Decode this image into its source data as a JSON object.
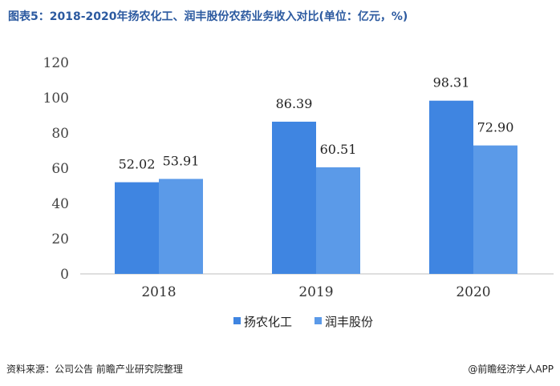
{
  "title": "图表5：2018-2020年扬农化工、润丰股份农药业务收入对比(单位：亿元，%)",
  "footer": {
    "source": "资料来源：公司公告 前瞻产业研究院整理",
    "brand": "@前瞻经济学人APP"
  },
  "colors": {
    "title": "#2c5aa0",
    "series1": "#3f85e1",
    "series2": "#5b9ae8"
  },
  "chart_data": {
    "type": "bar",
    "categories": [
      "2018",
      "2019",
      "2020"
    ],
    "series": [
      {
        "name": "扬农化工",
        "values": [
          52.02,
          86.39,
          98.31
        ],
        "labels": [
          "52.02",
          "86.39",
          "98.31"
        ]
      },
      {
        "name": "润丰股份",
        "values": [
          53.91,
          60.51,
          72.9
        ],
        "labels": [
          "53.91",
          "60.51",
          "72.90"
        ]
      }
    ],
    "ylim": [
      0,
      120
    ],
    "yticks": [
      "0",
      "20",
      "40",
      "60",
      "80",
      "100",
      "120"
    ],
    "grid": false,
    "legend": "bottom"
  }
}
